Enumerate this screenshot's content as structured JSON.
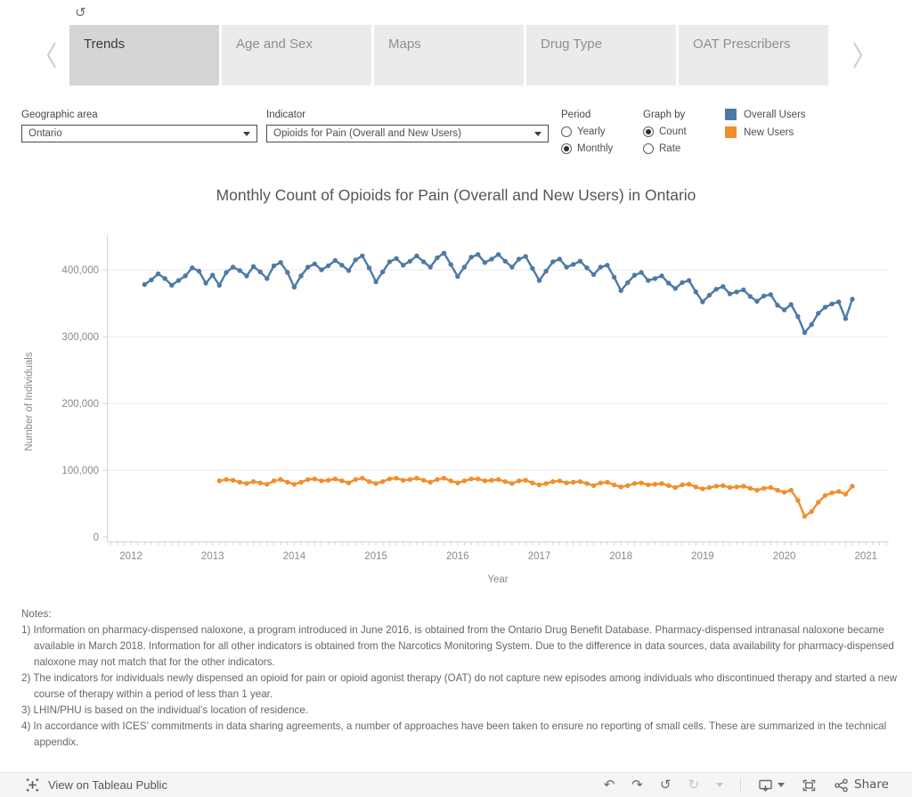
{
  "icons": {
    "tab_refresh": "↺",
    "undo": "↶",
    "redo": "↷",
    "reset": "↺",
    "refresh": "↻"
  },
  "tabs": {
    "items": [
      {
        "label": "Trends",
        "active": true
      },
      {
        "label": "Age and Sex",
        "active": false
      },
      {
        "label": "Maps",
        "active": false
      },
      {
        "label": "Drug Type",
        "active": false
      },
      {
        "label": "OAT Prescribers",
        "active": false
      }
    ]
  },
  "filters": {
    "geographic": {
      "label": "Geographic area",
      "value": "Ontario"
    },
    "indicator": {
      "label": "Indicator",
      "value": "Opioids for Pain (Overall and New Users)"
    },
    "period": {
      "label": "Period",
      "options": [
        {
          "label": "Yearly",
          "selected": false
        },
        {
          "label": "Monthly",
          "selected": true
        }
      ]
    },
    "graph_by": {
      "label": "Graph by",
      "options": [
        {
          "label": "Count",
          "selected": true
        },
        {
          "label": "Rate",
          "selected": false
        }
      ]
    }
  },
  "legend": {
    "items": [
      {
        "label": "Overall Users",
        "color": "#4e79a7"
      },
      {
        "label": "New Users",
        "color": "#f28e2b"
      }
    ]
  },
  "chart_data": {
    "type": "line",
    "title": "Monthly Count of Opioids for Pain (Overall and New Users) in Ontario",
    "xlabel": "Year",
    "ylabel": "Number of Individuals",
    "x_ticks": [
      2012,
      2013,
      2014,
      2015,
      2016,
      2017,
      2018,
      2019,
      2020,
      2021
    ],
    "y_ticks": [
      0,
      100000,
      200000,
      300000,
      400000
    ],
    "ylim": [
      0,
      450000
    ],
    "grid": "horizontal-only",
    "legend_position": "top-right",
    "series": [
      {
        "name": "Overall Users",
        "color": "#4e79a7",
        "start_month": "2012-03",
        "values": [
          378000,
          385000,
          394000,
          387000,
          377000,
          384000,
          391000,
          403000,
          398000,
          380000,
          392000,
          377000,
          396000,
          404000,
          399000,
          391000,
          405000,
          397000,
          387000,
          406000,
          411000,
          396000,
          374000,
          391000,
          404000,
          409000,
          400000,
          406000,
          414000,
          407000,
          399000,
          415000,
          421000,
          403000,
          382000,
          397000,
          412000,
          417000,
          407000,
          413000,
          421000,
          412000,
          404000,
          418000,
          425000,
          408000,
          390000,
          404000,
          419000,
          423000,
          411000,
          416000,
          423000,
          413000,
          404000,
          416000,
          420000,
          402000,
          384000,
          398000,
          412000,
          416000,
          404000,
          408000,
          413000,
          403000,
          393000,
          404000,
          407000,
          389000,
          369000,
          381000,
          392000,
          396000,
          384000,
          387000,
          391000,
          380000,
          372000,
          381000,
          384000,
          367000,
          352000,
          362000,
          371000,
          375000,
          364000,
          367000,
          370000,
          360000,
          353000,
          361000,
          363000,
          347000,
          340000,
          348000,
          330000,
          306000,
          318000,
          335000,
          344000,
          349000,
          352000,
          327000,
          356000
        ]
      },
      {
        "name": "New Users",
        "color": "#f28e2b",
        "start_month": "2013-02",
        "values": [
          84000,
          86000,
          85000,
          82000,
          80000,
          83000,
          81000,
          79000,
          84000,
          86000,
          82000,
          79000,
          82000,
          86000,
          87000,
          84000,
          85000,
          87000,
          84000,
          81000,
          86000,
          88000,
          83000,
          80000,
          83000,
          87000,
          88000,
          85000,
          86000,
          88000,
          85000,
          82000,
          86000,
          88000,
          84000,
          81000,
          84000,
          87000,
          87000,
          84000,
          85000,
          86000,
          83000,
          80000,
          84000,
          85000,
          81000,
          78000,
          80000,
          83000,
          84000,
          81000,
          82000,
          83000,
          80000,
          77000,
          81000,
          82000,
          78000,
          75000,
          77000,
          80000,
          81000,
          78000,
          79000,
          80000,
          77000,
          74000,
          78000,
          79000,
          75000,
          72000,
          74000,
          76000,
          77000,
          74000,
          75000,
          76000,
          73000,
          70000,
          73000,
          74000,
          70000,
          67000,
          70000,
          55000,
          31000,
          38000,
          52000,
          62000,
          66000,
          68000,
          64000,
          76000
        ]
      }
    ]
  },
  "notes": {
    "title": "Notes:",
    "items": [
      "1) Information on pharmacy-dispensed naloxone, a program introduced in June 2016, is obtained from the Ontario Drug Benefit Database. Pharmacy-dispensed intranasal naloxone became available in March 2018. Information for all other indicators is obtained from the Narcotics Monitoring System. Due to the difference in data sources, data availability for pharmacy-dispensed naloxone may not match that for the other indicators.",
      "2) The indicators for individuals newly dispensed an opioid for pain or opioid agonist therapy (OAT) do not capture new episodes among individuals who discontinued therapy and started a new course of therapy within a period of less than 1 year.",
      "3) LHIN/PHU is based on the individual’s location of residence.",
      "4) In accordance with ICES’ commitments in data sharing agreements, a number of approaches have been taken to ensure no reporting of small cells. These are summarized in the technical appendix."
    ]
  },
  "footer": {
    "attribution": "View on Tableau Public",
    "share_label": "Share",
    "toolbar_icons": [
      "undo-icon",
      "redo-icon",
      "reset-icon",
      "refresh-icon",
      "refresh-caret-icon",
      "download-icon",
      "download-caret-icon",
      "fullscreen-icon",
      "share-icon"
    ]
  }
}
